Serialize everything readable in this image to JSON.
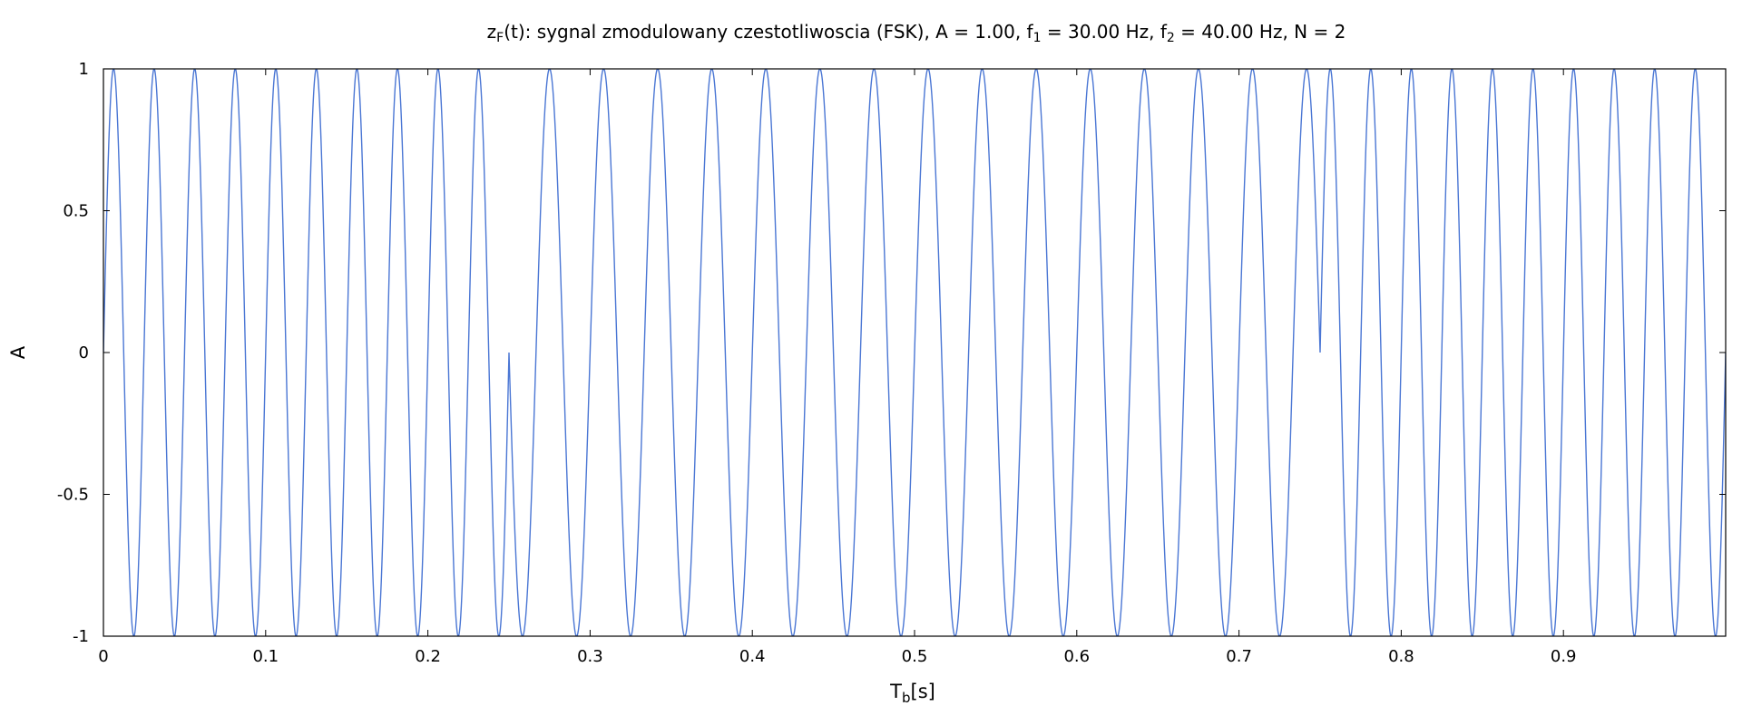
{
  "chart_data": {
    "type": "line",
    "title": {
      "base": "z",
      "base_sub": "F",
      "part1": "(t): sygnal zmodulowany czestotliwoscia (FSK), A = 1.00, f",
      "f1_sub": "1",
      "part2": " = 30.00 Hz, f",
      "f2_sub": "2",
      "part3": " = 40.00 Hz, N = 2"
    },
    "xlabel": {
      "base": "T",
      "sub": "b",
      "rest": "[s]"
    },
    "ylabel": "A",
    "xlim": [
      0,
      1
    ],
    "ylim": [
      -1,
      1
    ],
    "x_ticks": [
      {
        "value": 0,
        "label": "0"
      },
      {
        "value": 0.1,
        "label": "0.1"
      },
      {
        "value": 0.2,
        "label": "0.2"
      },
      {
        "value": 0.3,
        "label": "0.3"
      },
      {
        "value": 0.4,
        "label": "0.4"
      },
      {
        "value": 0.5,
        "label": "0.5"
      },
      {
        "value": 0.6,
        "label": "0.6"
      },
      {
        "value": 0.7,
        "label": "0.7"
      },
      {
        "value": 0.8,
        "label": "0.8"
      },
      {
        "value": 0.9,
        "label": "0.9"
      }
    ],
    "y_ticks": [
      {
        "value": 1,
        "label": "1"
      },
      {
        "value": 0.5,
        "label": "0.5"
      },
      {
        "value": 0,
        "label": "0"
      },
      {
        "value": -0.5,
        "label": "-0.5"
      },
      {
        "value": -1,
        "label": "-1"
      }
    ],
    "grid": false,
    "series": [
      {
        "color": "#4a76d4",
        "function": "A*sin(2*pi*f*t)",
        "amplitude": 1.0,
        "f1": 30.0,
        "f2": 40.0,
        "N": 2,
        "t_range": [
          0,
          1
        ],
        "frequency_segments": [
          {
            "t_start": 0.0,
            "t_end": 0.25,
            "freq": 40.0
          },
          {
            "t_start": 0.25,
            "t_end": 0.5,
            "freq": 30.0
          },
          {
            "t_start": 0.5,
            "t_end": 0.75,
            "freq": 30.0
          },
          {
            "t_start": 0.75,
            "t_end": 1.0,
            "freq": 40.0
          }
        ]
      }
    ]
  }
}
